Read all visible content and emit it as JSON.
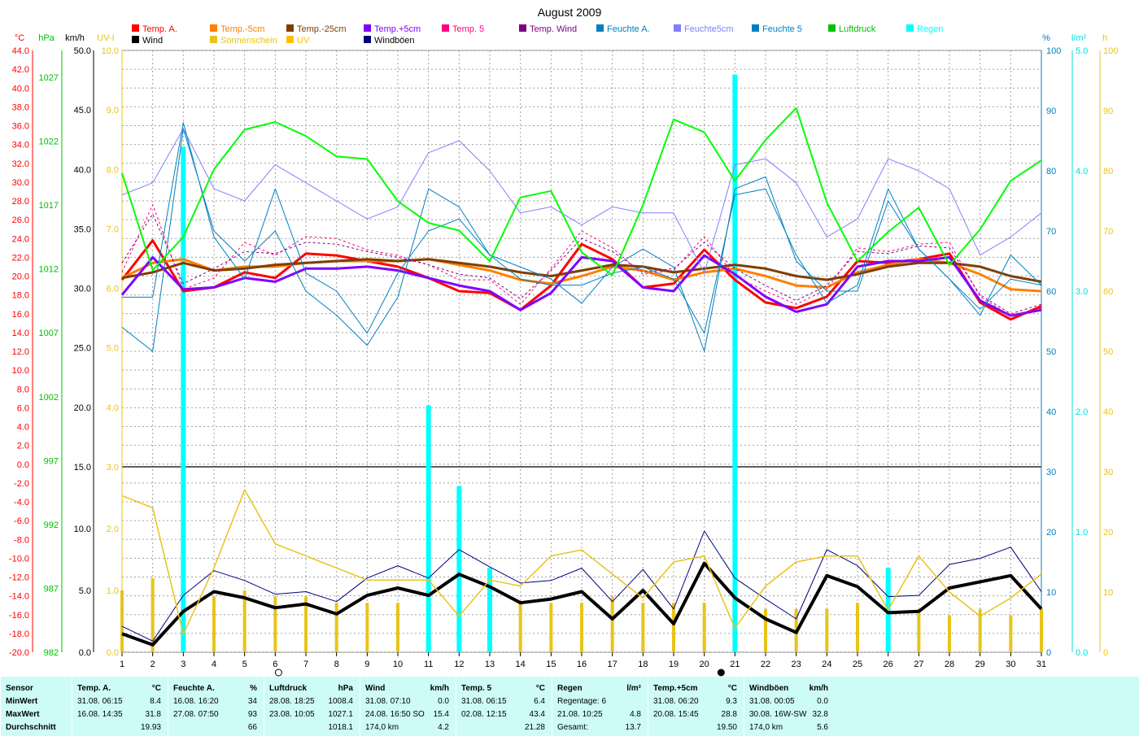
{
  "title": "August 2009",
  "legend": [
    {
      "label": "Temp. A.",
      "color": "#ff0000"
    },
    {
      "label": "Wind",
      "color": "#000000"
    },
    {
      "label": "Temp.-5cm",
      "color": "#ff7f00"
    },
    {
      "label": "Sonnenschein",
      "color": "#e8c41a"
    },
    {
      "label": "Temp.-25cm",
      "color": "#7f3f00"
    },
    {
      "label": "UV",
      "color": "#ffbf00"
    },
    {
      "label": "Temp.+5cm",
      "color": "#8000ff"
    },
    {
      "label": "Windböen",
      "color": "#000080"
    },
    {
      "label": "Temp. 5",
      "color": "#ff007f"
    },
    {
      "label": "Temp. Wind",
      "color": "#7f007f"
    },
    {
      "label": "Feuchte A.",
      "color": "#0080c0"
    },
    {
      "label": "Feuchte5cm",
      "color": "#8080ff"
    },
    {
      "label": "Feuchte 5",
      "color": "#0080c0"
    },
    {
      "label": "Luftdruck",
      "color": "#00c000"
    },
    {
      "label": "Regen",
      "color": "#00ffff"
    }
  ],
  "axis_headers": {
    "temp": "°C",
    "pressure": "hPa",
    "wind": "km/h",
    "uv": "UV-I",
    "humidity": "%",
    "rain": "l/m²",
    "sun": "h"
  },
  "axis_colors": {
    "temp": "#ff0000",
    "pressure": "#00c000",
    "wind": "#000000",
    "uv": "#e8c41a",
    "humidity": "#0080c0",
    "rain": "#00e0e0",
    "sun": "#e8c41a"
  },
  "chart_data": {
    "type": "line",
    "title": "August 2009",
    "x": [
      1,
      2,
      3,
      4,
      5,
      6,
      7,
      8,
      9,
      10,
      11,
      12,
      13,
      14,
      15,
      16,
      17,
      18,
      19,
      20,
      21,
      22,
      23,
      24,
      25,
      26,
      27,
      28,
      29,
      30,
      31
    ],
    "temp_ticks": [
      "44.0",
      "42.0",
      "40.0",
      "38.0",
      "36.0",
      "34.0",
      "32.0",
      "30.0",
      "28.0",
      "26.0",
      "24.0",
      "22.0",
      "20.0",
      "18.0",
      "16.0",
      "14.0",
      "12.0",
      "10.0",
      "8.0",
      "6.0",
      "4.0",
      "2.0",
      "0.0",
      "-2.0",
      "-4.0",
      "-6.0",
      "-8.0",
      "-10.0",
      "-12.0",
      "-14.0",
      "-16.0",
      "-18.0",
      "-20.0"
    ],
    "pressure_ticks": [
      "1027",
      "1022",
      "1017",
      "1012",
      "1007",
      "1002",
      "997",
      "992",
      "987",
      "982"
    ],
    "wind_ticks_upper": [
      "50.0",
      "45.0",
      "40.0",
      "35.0",
      "30.0",
      "25.0",
      "20.0"
    ],
    "wind_ticks_lower": [
      "15.0",
      "10.0",
      "5.0",
      "0.0"
    ],
    "uv_ticks_upper": [
      "10.0",
      "9.0",
      "8.0",
      "7.0",
      "6.0",
      "5.0",
      "4.0"
    ],
    "uv_ticks_lower": [
      "3.0",
      "2.0",
      "1.0",
      "0.0"
    ],
    "humidity_ticks": [
      "100",
      "90",
      "80",
      "70",
      "60",
      "50",
      "40",
      "30",
      "20",
      "10",
      "0"
    ],
    "rain_ticks": [
      "5.0",
      "4.0",
      "3.0",
      "2.0",
      "1.0",
      "0.0"
    ],
    "sun_ticks": [
      "100",
      "90",
      "80",
      "70",
      "60",
      "50",
      "40",
      "30",
      "20",
      "10",
      "0"
    ],
    "series": [
      {
        "name": "Temp. A.",
        "axis": "temp",
        "color": "#ff0000",
        "width": 3,
        "values": [
          19.6,
          23.8,
          18.4,
          18.8,
          20.4,
          19.8,
          22.4,
          22.2,
          21.6,
          21.0,
          19.8,
          18.4,
          18.2,
          16.4,
          19.0,
          23.4,
          21.8,
          18.8,
          19.2,
          22.8,
          19.6,
          17.2,
          16.6,
          17.8,
          21.6,
          21.4,
          21.8,
          22.4,
          17.2,
          15.4,
          16.8
        ]
      },
      {
        "name": "Temp.-5cm",
        "axis": "temp",
        "color": "#ff7f00",
        "width": 3,
        "values": [
          19.8,
          21.4,
          21.8,
          20.6,
          21.0,
          21.0,
          21.4,
          21.6,
          21.6,
          21.6,
          21.8,
          21.2,
          20.6,
          19.6,
          19.2,
          20.0,
          21.0,
          20.6,
          19.6,
          20.4,
          20.8,
          20.0,
          19.0,
          18.8,
          20.4,
          21.2,
          21.8,
          21.4,
          20.2,
          18.6,
          18.4
        ]
      },
      {
        "name": "Temp.-25cm",
        "axis": "temp",
        "color": "#7f3f00",
        "width": 3,
        "values": [
          19.8,
          20.4,
          21.4,
          20.6,
          20.8,
          21.2,
          21.4,
          21.6,
          21.8,
          21.6,
          21.8,
          21.4,
          21.0,
          20.4,
          20.0,
          20.6,
          21.2,
          21.0,
          20.4,
          20.8,
          21.2,
          20.8,
          20.0,
          19.6,
          20.2,
          21.0,
          21.4,
          21.4,
          21.0,
          20.0,
          19.4
        ]
      },
      {
        "name": "Temp.+5cm",
        "axis": "temp",
        "color": "#8000ff",
        "width": 3,
        "values": [
          18.0,
          22.0,
          18.6,
          18.8,
          19.8,
          19.4,
          20.8,
          20.8,
          21.0,
          20.6,
          19.8,
          19.0,
          18.4,
          16.4,
          18.2,
          22.0,
          21.6,
          18.8,
          18.4,
          22.2,
          20.2,
          17.8,
          16.2,
          17.0,
          21.0,
          21.6,
          21.6,
          22.0,
          17.4,
          15.8,
          16.4
        ]
      },
      {
        "name": "Temp. 5",
        "axis": "temp",
        "color": "#ff007f",
        "width": 1,
        "dash": "3,3",
        "values": [
          20.4,
          27.6,
          18.6,
          19.8,
          23.6,
          22.2,
          24.2,
          24.0,
          22.8,
          22.2,
          21.2,
          19.6,
          19.6,
          17.0,
          20.8,
          24.8,
          23.0,
          20.2,
          20.6,
          24.2,
          20.0,
          18.4,
          17.0,
          18.6,
          23.0,
          22.6,
          23.4,
          23.6,
          17.8,
          15.8,
          16.6
        ]
      },
      {
        "name": "Temp. Wind",
        "axis": "temp",
        "color": "#7f007f",
        "width": 1,
        "dash": "3,3",
        "values": [
          21.4,
          26.6,
          19.2,
          20.8,
          22.6,
          22.4,
          23.6,
          23.4,
          22.6,
          22.0,
          21.2,
          20.2,
          19.8,
          17.6,
          20.6,
          24.0,
          22.6,
          20.4,
          20.8,
          23.6,
          20.8,
          19.0,
          17.4,
          19.0,
          22.6,
          22.4,
          23.2,
          23.0,
          18.0,
          16.0,
          17.0
        ]
      },
      {
        "name": "Feuchte A.",
        "axis": "humidity",
        "color": "#0080c0",
        "width": 1,
        "values": [
          54,
          50,
          87,
          70,
          65,
          70,
          60,
          56,
          51,
          59,
          77,
          74,
          66,
          64,
          62,
          58,
          64,
          67,
          64,
          50,
          77,
          79,
          65,
          60,
          60,
          75,
          67,
          62,
          56,
          66,
          61
        ]
      },
      {
        "name": "Feuchte5cm",
        "axis": "humidity",
        "color": "#8080ff",
        "width": 1,
        "values": [
          76,
          78,
          87,
          77,
          75,
          81,
          78,
          75,
          72,
          74,
          83,
          85,
          80,
          73,
          74,
          71,
          74,
          73,
          73,
          63,
          81,
          82,
          78,
          69,
          72,
          82,
          80,
          77,
          66,
          69,
          73
        ]
      },
      {
        "name": "Feuchte 5",
        "axis": "humidity",
        "color": "#0080c0",
        "width": 1,
        "values": [
          59,
          59,
          88,
          69,
          62,
          77,
          63,
          60,
          53,
          63,
          70,
          72,
          66,
          62,
          61,
          61,
          63,
          64,
          62,
          53,
          76,
          77,
          66,
          58,
          61,
          77,
          67,
          62,
          57,
          62,
          61
        ]
      },
      {
        "name": "Luftdruck",
        "axis": "pressure",
        "color": "#00ff00",
        "width": 2,
        "values": [
          1019.5,
          1011.9,
          1014.5,
          1019.8,
          1022.9,
          1023.5,
          1022.4,
          1020.8,
          1020.6,
          1017.3,
          1015.6,
          1015.0,
          1012.6,
          1017.6,
          1018.1,
          1013.3,
          1011.5,
          1017.0,
          1023.7,
          1022.7,
          1018.9,
          1022.1,
          1024.6,
          1017.2,
          1012.6,
          1014.9,
          1016.8,
          1012.3,
          1015.1,
          1018.9,
          1020.5
        ]
      },
      {
        "name": "Wind",
        "axis": "wind_lower",
        "color": "#000000",
        "width": 4,
        "values": [
          1.5,
          0.6,
          3.3,
          4.9,
          4.4,
          3.6,
          3.9,
          3.1,
          4.6,
          5.2,
          4.6,
          6.3,
          5.3,
          4.0,
          4.3,
          4.9,
          2.7,
          5.0,
          2.3,
          7.2,
          4.4,
          2.7,
          1.6,
          6.2,
          5.3,
          3.2,
          3.3,
          5.2,
          5.7,
          6.2,
          3.5
        ]
      },
      {
        "name": "Windböen",
        "axis": "wind_lower",
        "color": "#000080",
        "width": 1,
        "values": [
          2.1,
          0.9,
          4.6,
          6.6,
          5.8,
          4.7,
          4.9,
          4.1,
          6.0,
          7.0,
          6.0,
          8.3,
          6.9,
          5.6,
          5.8,
          6.8,
          4.1,
          6.7,
          3.5,
          9.8,
          6.0,
          4.3,
          2.7,
          8.3,
          7.0,
          4.5,
          4.6,
          7.1,
          7.6,
          8.5,
          4.9
        ]
      },
      {
        "name": "Sonnenschein",
        "axis": "sun",
        "color": "#e8c41a",
        "width": 1.5,
        "values": [
          26,
          24,
          3,
          14,
          27,
          18,
          16,
          14,
          12,
          12,
          12,
          6,
          12,
          11,
          16,
          17,
          13,
          9,
          15,
          16,
          4,
          11,
          15,
          16,
          16,
          7,
          16,
          10,
          6,
          9,
          13
        ]
      },
      {
        "name": "UV",
        "axis": "uv_lower",
        "color": "#e8c41a",
        "width": 4,
        "bar": true,
        "values": [
          1.0,
          1.2,
          0.5,
          0.9,
          1.0,
          0.9,
          0.9,
          0.8,
          0.8,
          0.8,
          0.8,
          0.6,
          0.8,
          0.8,
          0.8,
          0.8,
          0.9,
          0.8,
          0.8,
          0.8,
          0.6,
          0.7,
          0.7,
          0.7,
          0.8,
          0.7,
          0.7,
          0.6,
          0.7,
          0.6,
          0.7
        ]
      },
      {
        "name": "Regen",
        "axis": "rain",
        "color": "#00ffff",
        "width": 6,
        "bar": true,
        "values": [
          0,
          0,
          4.2,
          0,
          0,
          0,
          0,
          0,
          0,
          0,
          2.05,
          1.38,
          0.7,
          0,
          0,
          0,
          0,
          0,
          0,
          0,
          4.8,
          0,
          0,
          0,
          0,
          0.7,
          0,
          0,
          0,
          0,
          0
        ]
      }
    ]
  },
  "stats": {
    "sensor": {
      "title": "Sensor",
      "rows": [
        "MinWert",
        "MaxWert",
        "Durchschnitt"
      ]
    },
    "temp_a": {
      "title": "Temp. A.",
      "unit": "°C",
      "r1": [
        "31.08.  06:15",
        "8.4"
      ],
      "r2": [
        "16.08.  14:35",
        "31.8"
      ],
      "r3": [
        "",
        "19.93"
      ]
    },
    "feuchte": {
      "title": "Feuchte A.",
      "unit": "%",
      "r1": [
        "16.08.  16:20",
        "34"
      ],
      "r2": [
        "27.08.  07:50",
        "93"
      ],
      "r3": [
        "",
        "66"
      ]
    },
    "luftdruck": {
      "title": "Luftdruck",
      "unit": "hPa",
      "r1": [
        "28.08.  18:25",
        "1008.4"
      ],
      "r2": [
        "23.08.  10:05",
        "1027.1"
      ],
      "r3": [
        "",
        "1018.1"
      ]
    },
    "wind": {
      "title": "Wind",
      "unit": "km/h",
      "r1": [
        "31.08.  07:10",
        "0.0"
      ],
      "r2": [
        "24.08.  16:50 SO",
        "15.4"
      ],
      "r3": [
        "174,0 km",
        "4.2"
      ]
    },
    "temp5": {
      "title": "Temp. 5",
      "unit": "°C",
      "r1": [
        "31.08.  06:15",
        "6.4"
      ],
      "r2": [
        "02.08.  12:15",
        "43.4"
      ],
      "r3": [
        "",
        "21.28"
      ]
    },
    "regen": {
      "title": "Regen",
      "unit": "l/m²",
      "r1": [
        "Regentage: 6",
        ""
      ],
      "r2": [
        "21.08.  10:25",
        "4.8"
      ],
      "r3": [
        "Gesamt:",
        "13.7"
      ]
    },
    "tempplus5": {
      "title": "Temp.+5cm",
      "unit": "°C",
      "r1": [
        "31.08.  06:20",
        "9.3"
      ],
      "r2": [
        "20.08.  15:45",
        "28.8"
      ],
      "r3": [
        "",
        "19.50"
      ]
    },
    "windboeen": {
      "title": "Windböen",
      "unit": "km/h",
      "r1": [
        "31.08.  00:05",
        "0.0"
      ],
      "r2": [
        "30.08.  16W-SW",
        "32.8"
      ],
      "r3": [
        "174,0 km",
        "5.6"
      ]
    }
  }
}
